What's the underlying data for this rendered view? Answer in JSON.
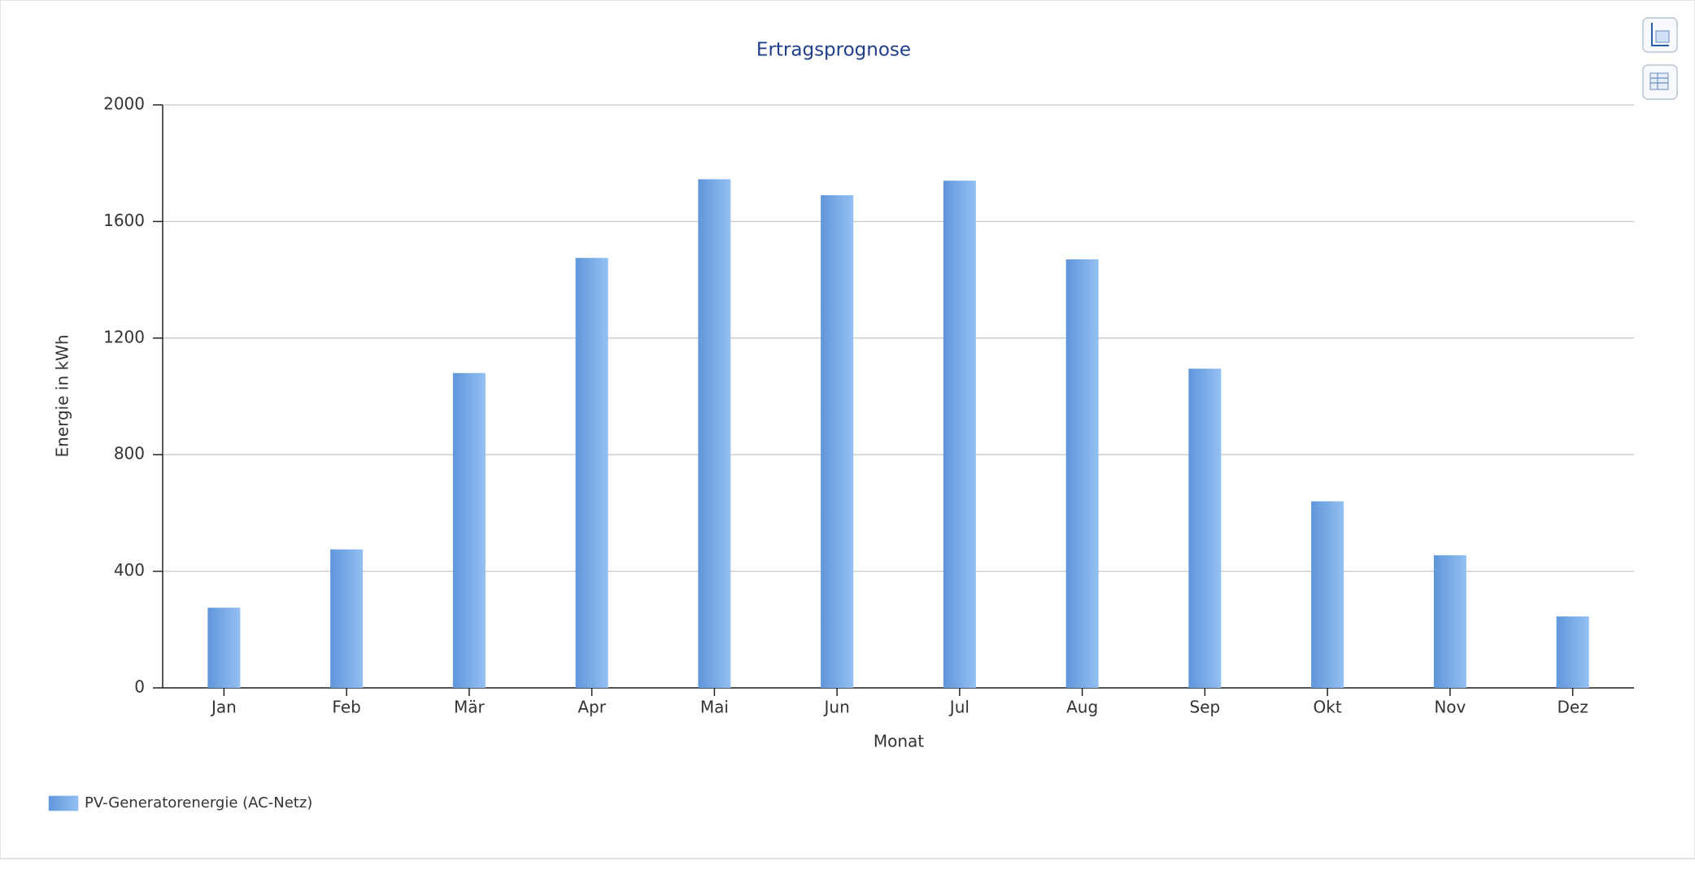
{
  "chart_data": {
    "type": "bar",
    "title": "Ertragsprognose",
    "x_label": "Monat",
    "y_label": "Energie in kWh",
    "categories": [
      "Jan",
      "Feb",
      "Mär",
      "Apr",
      "Mai",
      "Jun",
      "Jul",
      "Aug",
      "Sep",
      "Okt",
      "Nov",
      "Dez"
    ],
    "series": [
      {
        "name": "PV-Generatorenergie (AC-Netz)",
        "color": "#7aaee8",
        "values": [
          275,
          475,
          1080,
          1475,
          1745,
          1690,
          1740,
          1470,
          1095,
          640,
          455,
          245
        ]
      }
    ],
    "ylim": [
      0,
      2000
    ],
    "yticks": [
      0,
      400,
      800,
      1200,
      1600,
      2000
    ],
    "grid": true,
    "legend": "bottom-left"
  }
}
